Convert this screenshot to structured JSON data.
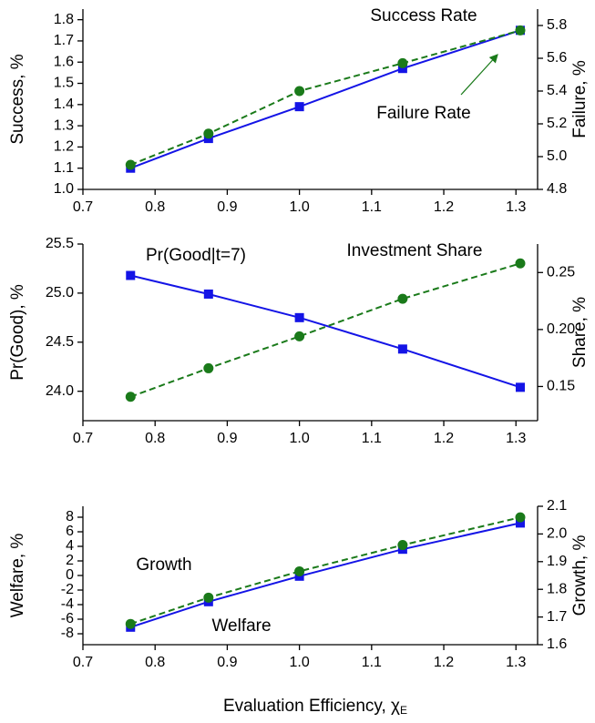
{
  "chart_data": [
    {
      "type": "line",
      "x": [
        0.766,
        0.874,
        1.0,
        1.143,
        1.306
      ],
      "xlim": [
        0.7,
        1.33
      ],
      "xticks": [
        0.7,
        0.8,
        0.9,
        {
          "value": 1,
          "label": "1.0"
        },
        1.1,
        1.2,
        1.3
      ],
      "ylim": [
        1.0,
        1.85
      ],
      "yticks": [
        {
          "value": 1,
          "label": "1.0"
        },
        1.1,
        1.2,
        1.3,
        1.4,
        1.5,
        1.6,
        1.7,
        1.8
      ],
      "y2lim": [
        4.8,
        5.9
      ],
      "y2ticks": [
        4.8,
        {
          "value": 5,
          "label": "5.0"
        },
        5.2,
        5.4,
        5.6,
        5.8
      ],
      "ylabel": "Success, %",
      "y2label": "Failure, %",
      "series": [
        {
          "name": "Success Rate",
          "color": "#1414e6",
          "marker": "square",
          "dashed": false,
          "values": [
            1.1,
            1.24,
            1.39,
            1.57,
            1.75
          ]
        },
        {
          "name": "Failure Rate",
          "color": "#1a7a1a",
          "marker": "circle",
          "dashed": true,
          "axis": "y2",
          "values": [
            4.95,
            5.14,
            5.4,
            5.57,
            5.77
          ]
        }
      ]
    },
    {
      "type": "line",
      "x": [
        0.766,
        0.874,
        1.0,
        1.143,
        1.306
      ],
      "xlim": [
        0.7,
        1.33
      ],
      "xticks": [
        0.7,
        0.8,
        0.9,
        {
          "value": 1,
          "label": "1.0"
        },
        1.1,
        1.2,
        1.3
      ],
      "ylim": [
        23.7,
        25.5
      ],
      "yticks": [
        {
          "value": 24,
          "label": "24.0"
        },
        24.5,
        {
          "value": 25,
          "label": "25.0"
        },
        25.5
      ],
      "y2lim": [
        0.12,
        0.275
      ],
      "y2ticks": [
        0.15,
        {
          "value": 0.2,
          "label": "0.20"
        },
        0.25
      ],
      "ylabel": "Pr(Good), %",
      "y2label": "Share, %",
      "series": [
        {
          "name": "Pr(Good|t=7)",
          "color": "#1414e6",
          "marker": "square",
          "dashed": false,
          "values": [
            25.18,
            24.99,
            24.75,
            24.43,
            24.04
          ]
        },
        {
          "name": "Investment Share",
          "color": "#1a7a1a",
          "marker": "circle",
          "dashed": true,
          "axis": "y2",
          "values": [
            0.141,
            0.166,
            0.194,
            0.227,
            0.258
          ]
        }
      ]
    },
    {
      "type": "line",
      "x": [
        0.766,
        0.874,
        1.0,
        1.143,
        1.306
      ],
      "xlim": [
        0.7,
        1.33
      ],
      "xticks": [
        0.7,
        0.8,
        0.9,
        {
          "value": 1,
          "label": "1.0"
        },
        1.1,
        1.2,
        1.3
      ],
      "ylim": [
        -9.5,
        9.5
      ],
      "yticks": [
        -8,
        -6,
        -4,
        -2,
        0,
        2,
        4,
        6,
        8
      ],
      "y2lim": [
        1.6,
        2.1
      ],
      "y2ticks": [
        1.6,
        1.7,
        1.8,
        1.9,
        {
          "value": 2,
          "label": "2.0"
        },
        2.1
      ],
      "ylabel": "Welfare, %",
      "y2label": "Growth, %",
      "xlabel": "Evaluation Efficiency, χ",
      "xlabel_sub": "E",
      "series": [
        {
          "name": "Welfare",
          "color": "#1414e6",
          "marker": "square",
          "dashed": false,
          "values": [
            -7.1,
            -3.6,
            -0.1,
            3.6,
            7.2
          ]
        },
        {
          "name": "Growth",
          "color": "#1a7a1a",
          "marker": "circle",
          "dashed": true,
          "axis": "y2",
          "values": [
            1.675,
            1.77,
            1.865,
            1.96,
            2.06
          ]
        }
      ]
    }
  ]
}
